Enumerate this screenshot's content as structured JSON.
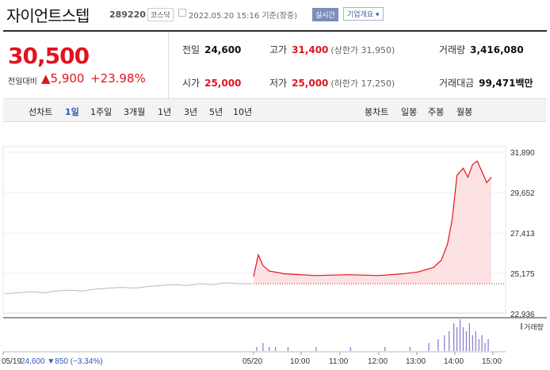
{
  "header": {
    "title": "자이언트스텝",
    "code": "289220",
    "market": "코스닥",
    "datetime": "2022.05.20 15:16 기준(장중)",
    "live_label": "실시간",
    "company_label": "기업개요 ▾"
  },
  "summary": {
    "price": "30,500",
    "prev_label": "전일대비",
    "change": "▲5,900",
    "change_pct": "+23.98%",
    "prev_close_label": "전일",
    "prev_close": "24,600",
    "high_label": "고가",
    "high": "31,400",
    "upper_limit": "(상한가 31,950)",
    "volume_label": "거래량",
    "volume": "3,416,080",
    "open_label": "시가",
    "open": "25,000",
    "low_label": "저가",
    "low": "25,000",
    "lower_limit": "(하한가 17,250)",
    "amount_label": "거래대금",
    "amount": "99,471",
    "amount_unit": "백만"
  },
  "tabs": {
    "line_label": "선차트",
    "line_items": [
      "1일",
      "1주일",
      "3개월",
      "1년",
      "3년",
      "5년",
      "10년"
    ],
    "candle_label": "봉차트",
    "candle_items": [
      "일봉",
      "주봉",
      "월봉"
    ]
  },
  "colors": {
    "up": "#e0141e",
    "down": "#2a57b8",
    "prev_line": "#bbbbbb",
    "fill": "#fde2e3",
    "volume": "#8877cc"
  },
  "chart_data": {
    "type": "line",
    "x_ticks": [
      "05/19",
      "05/20",
      "10:00",
      "11:00",
      "12:00",
      "13:00",
      "14:00",
      "15:00"
    ],
    "y_ticks": [
      31890,
      29652,
      27413,
      25175,
      22936
    ],
    "y_tick_labels": [
      "31,890",
      "29,652",
      "27,413",
      "25,175",
      "22,936"
    ],
    "ylim": [
      22936,
      31890
    ],
    "baseline": 24600,
    "prev_day_summary": {
      "date": "05/19",
      "close": "24,600",
      "change": "▼850",
      "change_pct": "(−3.34%)"
    },
    "prev_day_series": [
      24050,
      24100,
      24150,
      24100,
      24200,
      24250,
      24200,
      24300,
      24350,
      24400,
      24350,
      24450,
      24500,
      24550,
      24500,
      24600,
      24550,
      24650,
      24600,
      24600
    ],
    "series": [
      {
        "values": [
          [
            0,
            25000
          ],
          [
            3,
            26200
          ],
          [
            6,
            25600
          ],
          [
            10,
            25300
          ],
          [
            20,
            25150
          ],
          [
            40,
            25050
          ],
          [
            60,
            25100
          ],
          [
            80,
            25050
          ],
          [
            95,
            25150
          ],
          [
            105,
            25250
          ],
          [
            115,
            25500
          ],
          [
            120,
            25900
          ],
          [
            124,
            26800
          ],
          [
            127,
            28200
          ],
          [
            130,
            30600
          ],
          [
            134,
            31000
          ],
          [
            137,
            30500
          ],
          [
            140,
            31200
          ],
          [
            143,
            31400
          ],
          [
            146,
            30800
          ],
          [
            149,
            30200
          ],
          [
            152,
            30500
          ]
        ]
      }
    ],
    "volume_label": "거래량",
    "volume_series": [
      [
        2,
        1
      ],
      [
        6,
        2
      ],
      [
        10,
        1
      ],
      [
        14,
        1
      ],
      [
        22,
        1
      ],
      [
        40,
        1
      ],
      [
        62,
        1
      ],
      [
        84,
        1
      ],
      [
        100,
        1
      ],
      [
        112,
        2
      ],
      [
        118,
        3
      ],
      [
        122,
        4
      ],
      [
        125,
        5
      ],
      [
        128,
        7
      ],
      [
        130,
        6
      ],
      [
        132,
        8
      ],
      [
        134,
        6
      ],
      [
        136,
        5
      ],
      [
        138,
        7
      ],
      [
        140,
        4
      ],
      [
        142,
        5
      ],
      [
        144,
        3
      ],
      [
        146,
        4
      ],
      [
        148,
        2
      ],
      [
        150,
        3
      ]
    ]
  }
}
